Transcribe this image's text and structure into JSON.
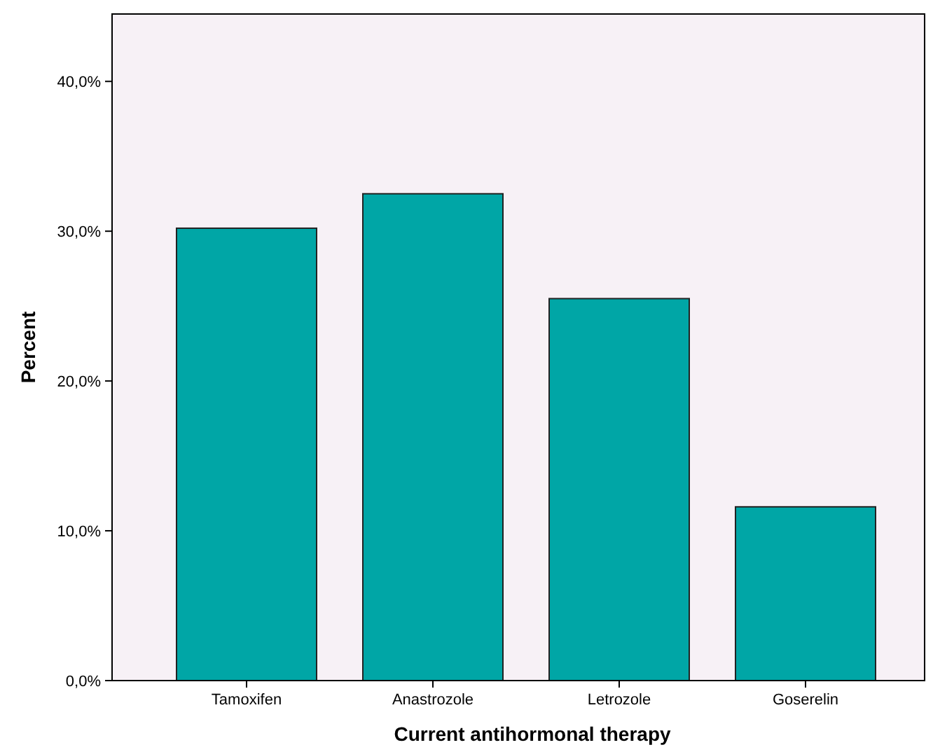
{
  "chart_data": {
    "type": "bar",
    "xlabel": "Current antihormonal therapy",
    "ylabel": "Percent",
    "categories": [
      "Tamoxifen",
      "Anastrozole",
      "Letrozole",
      "Goserelin"
    ],
    "values": [
      30.2,
      32.5,
      25.5,
      11.6
    ],
    "color": "#00a6a6",
    "ylim": [
      0,
      44.5
    ],
    "yticks": [
      {
        "value": 0,
        "label": "0,0%"
      },
      {
        "value": 10,
        "label": "10,0%"
      },
      {
        "value": 20,
        "label": "20,0%"
      },
      {
        "value": 30,
        "label": "30,0%"
      },
      {
        "value": 40,
        "label": "40,0%"
      }
    ],
    "grid": false
  }
}
